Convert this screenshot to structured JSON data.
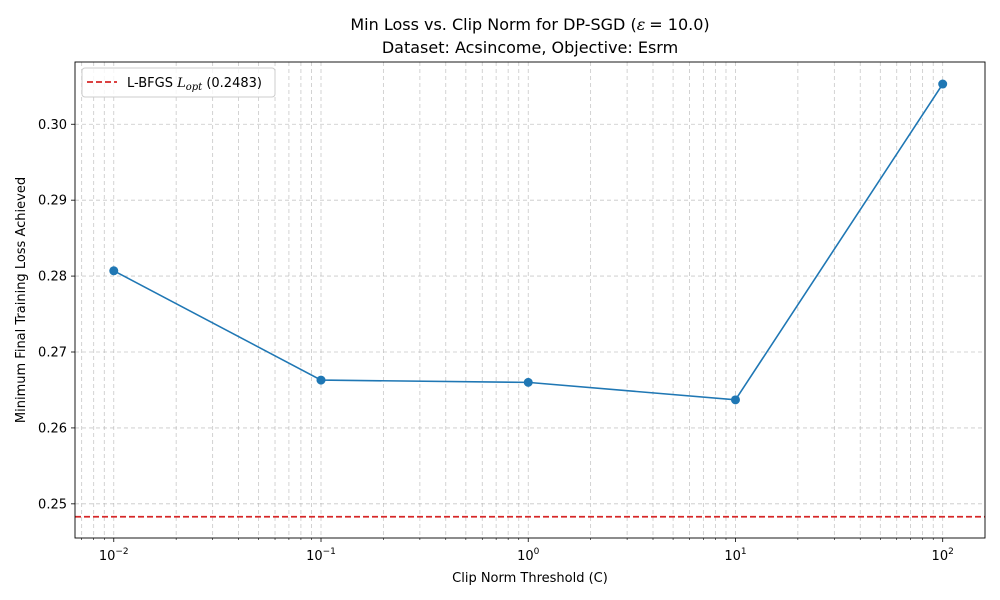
{
  "chart_data": {
    "type": "line",
    "title": {
      "prefix": "Min Loss vs. Clip Norm for DP-SGD (",
      "epsilon_symbol": "ε",
      "epsilon_value": "= 10.0",
      "suffix": ")"
    },
    "subtitle": "Dataset: Acsincome, Objective: Esrm",
    "xlabel": "Clip Norm Threshold (C)",
    "ylabel": "Minimum Final Training Loss Achieved",
    "x_scale": "log",
    "xlim": [
      0.0065,
      160
    ],
    "ylim": [
      0.2455,
      0.3082
    ],
    "x_ticks": [
      {
        "value": 0.01,
        "base": "10",
        "exp": "−2"
      },
      {
        "value": 0.1,
        "base": "10",
        "exp": "−1"
      },
      {
        "value": 1,
        "base": "10",
        "exp": "0"
      },
      {
        "value": 10,
        "base": "10",
        "exp": "1"
      },
      {
        "value": 100,
        "base": "10",
        "exp": "2"
      }
    ],
    "y_ticks": [
      {
        "value": 0.25,
        "label": "0.25"
      },
      {
        "value": 0.26,
        "label": "0.26"
      },
      {
        "value": 0.27,
        "label": "0.27"
      },
      {
        "value": 0.28,
        "label": "0.28"
      },
      {
        "value": 0.29,
        "label": "0.29"
      },
      {
        "value": 0.3,
        "label": "0.30"
      }
    ],
    "grid": true,
    "grid_minor_x": true,
    "legend_position": "top-left",
    "series": [
      {
        "type": "line",
        "marker": "circle",
        "color": "#1f77b4",
        "x": [
          0.01,
          0.1,
          1,
          10,
          100
        ],
        "y": [
          0.2807,
          0.2663,
          0.266,
          0.2637,
          0.3053
        ]
      }
    ],
    "reference_line": {
      "type": "hline",
      "y": 0.2483,
      "color": "#d62728",
      "style": "dashed",
      "legend_prefix": "L-BFGS ",
      "legend_symbol": "L",
      "legend_subscript": "opt",
      "legend_suffix": " (0.2483)"
    }
  }
}
